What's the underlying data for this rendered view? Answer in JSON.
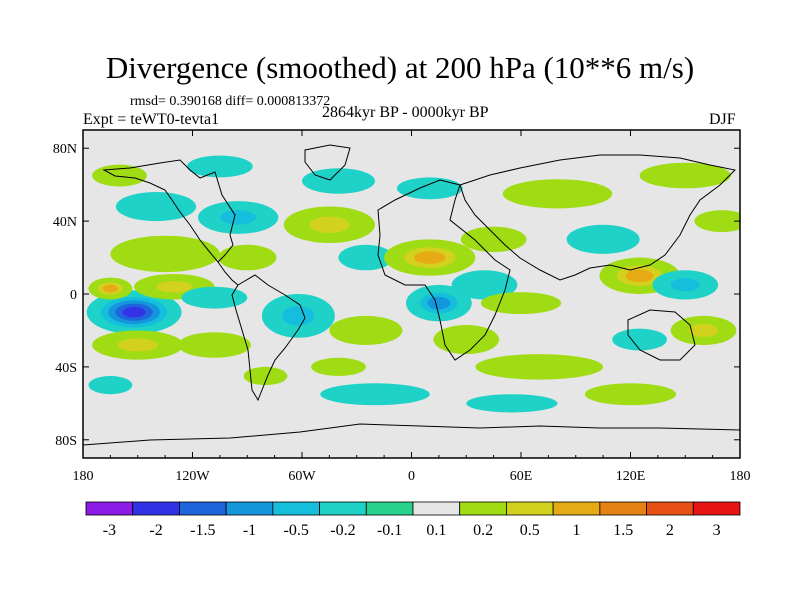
{
  "chart_data": {
    "type": "heatmap",
    "title": "Divergence (smoothed) at 200 hPa (10**6 m/s)",
    "stats": "rmsd= 0.390168 diff= 0.000813372",
    "left_label": "Expt = teWT0-tevta1",
    "center_label": "2864kyr BP - 0000kyr BP",
    "right_label": "DJF",
    "x_range": [
      -180,
      180
    ],
    "y_range": [
      -90,
      90
    ],
    "x_ticks": [
      {
        "value": -180,
        "label": "180"
      },
      {
        "value": -120,
        "label": "120W"
      },
      {
        "value": -60,
        "label": "60W"
      },
      {
        "value": 0,
        "label": "0"
      },
      {
        "value": 60,
        "label": "60E"
      },
      {
        "value": 120,
        "label": "120E"
      },
      {
        "value": 180,
        "label": "180"
      }
    ],
    "y_ticks": [
      {
        "value": 80,
        "label": "80N"
      },
      {
        "value": 40,
        "label": "40N"
      },
      {
        "value": 0,
        "label": "0"
      },
      {
        "value": -40,
        "label": "40S"
      },
      {
        "value": -80,
        "label": "80S"
      }
    ],
    "levels": [
      "-3",
      "-2",
      "-1.5",
      "-1",
      "-0.5",
      "-0.2",
      "-0.1",
      "0.1",
      "0.2",
      "0.5",
      "1",
      "1.5",
      "2",
      "3"
    ],
    "colors": [
      "#8c1ce6",
      "#3232e6",
      "#1e64dc",
      "#1496dc",
      "#14bedc",
      "#1ed2c8",
      "#28d28c",
      "#e6e6e6",
      "#a0dc14",
      "#d2d21e",
      "#e6aa14",
      "#e68214",
      "#e65014",
      "#e61414"
    ],
    "blobs": [
      {
        "lon": -152,
        "lat": -10,
        "rx": 26,
        "ry": 12,
        "v": -3
      },
      {
        "lon": -130,
        "lat": 4,
        "rx": 22,
        "ry": 7,
        "v": 1
      },
      {
        "lon": -165,
        "lat": 3,
        "rx": 12,
        "ry": 6,
        "v": 1.2
      },
      {
        "lon": -150,
        "lat": -28,
        "rx": 25,
        "ry": 8,
        "v": 1
      },
      {
        "lon": -165,
        "lat": -50,
        "rx": 12,
        "ry": 5,
        "v": -0.3
      },
      {
        "lon": -135,
        "lat": 22,
        "rx": 30,
        "ry": 10,
        "v": 0.6
      },
      {
        "lon": -140,
        "lat": 48,
        "rx": 22,
        "ry": 8,
        "v": -0.6
      },
      {
        "lon": -160,
        "lat": 65,
        "rx": 15,
        "ry": 6,
        "v": 0.4
      },
      {
        "lon": -105,
        "lat": 70,
        "rx": 18,
        "ry": 6,
        "v": -0.5
      },
      {
        "lon": -95,
        "lat": 42,
        "rx": 22,
        "ry": 9,
        "v": -0.8
      },
      {
        "lon": -90,
        "lat": 20,
        "rx": 16,
        "ry": 7,
        "v": 0.6
      },
      {
        "lon": -108,
        "lat": -2,
        "rx": 18,
        "ry": 6,
        "v": -0.6
      },
      {
        "lon": -108,
        "lat": -28,
        "rx": 20,
        "ry": 7,
        "v": 0.5
      },
      {
        "lon": -80,
        "lat": -45,
        "rx": 12,
        "ry": 5,
        "v": 0.3
      },
      {
        "lon": -62,
        "lat": -12,
        "rx": 20,
        "ry": 12,
        "v": -0.8
      },
      {
        "lon": -45,
        "lat": 38,
        "rx": 25,
        "ry": 10,
        "v": 1
      },
      {
        "lon": -40,
        "lat": 62,
        "rx": 20,
        "ry": 7,
        "v": -0.4
      },
      {
        "lon": -25,
        "lat": 20,
        "rx": 15,
        "ry": 7,
        "v": -0.4
      },
      {
        "lon": -25,
        "lat": -20,
        "rx": 20,
        "ry": 8,
        "v": 0.6
      },
      {
        "lon": -20,
        "lat": -55,
        "rx": 30,
        "ry": 6,
        "v": -0.3
      },
      {
        "lon": -40,
        "lat": -40,
        "rx": 15,
        "ry": 5,
        "v": 0.4
      },
      {
        "lon": 10,
        "lat": 20,
        "rx": 25,
        "ry": 10,
        "v": 1.5
      },
      {
        "lon": 15,
        "lat": -5,
        "rx": 18,
        "ry": 10,
        "v": -1.5
      },
      {
        "lon": 40,
        "lat": 5,
        "rx": 18,
        "ry": 8,
        "v": -0.5
      },
      {
        "lon": 30,
        "lat": -25,
        "rx": 18,
        "ry": 8,
        "v": 0.5
      },
      {
        "lon": 60,
        "lat": -5,
        "rx": 22,
        "ry": 6,
        "v": 0.6
      },
      {
        "lon": 45,
        "lat": 30,
        "rx": 18,
        "ry": 7,
        "v": 0.6
      },
      {
        "lon": 80,
        "lat": 55,
        "rx": 30,
        "ry": 8,
        "v": 0.5
      },
      {
        "lon": 10,
        "lat": 58,
        "rx": 18,
        "ry": 6,
        "v": -0.3
      },
      {
        "lon": 70,
        "lat": -40,
        "rx": 35,
        "ry": 7,
        "v": 0.5
      },
      {
        "lon": 55,
        "lat": -60,
        "rx": 25,
        "ry": 5,
        "v": -0.3
      },
      {
        "lon": 105,
        "lat": 30,
        "rx": 20,
        "ry": 8,
        "v": -0.6
      },
      {
        "lon": 125,
        "lat": 10,
        "rx": 22,
        "ry": 10,
        "v": 1.5
      },
      {
        "lon": 150,
        "lat": 5,
        "rx": 18,
        "ry": 8,
        "v": -0.7
      },
      {
        "lon": 160,
        "lat": -20,
        "rx": 18,
        "ry": 8,
        "v": 0.8
      },
      {
        "lon": 125,
        "lat": -25,
        "rx": 15,
        "ry": 6,
        "v": -0.5
      },
      {
        "lon": 150,
        "lat": 65,
        "rx": 25,
        "ry": 7,
        "v": 0.6
      },
      {
        "lon": 120,
        "lat": -55,
        "rx": 25,
        "ry": 6,
        "v": 0.3
      },
      {
        "lon": 170,
        "lat": 40,
        "rx": 15,
        "ry": 6,
        "v": 0.4
      }
    ]
  }
}
